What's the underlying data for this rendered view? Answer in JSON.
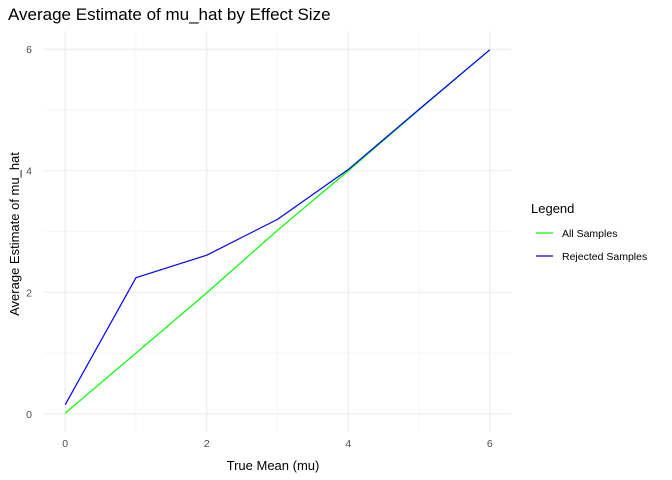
{
  "chart_data": {
    "type": "line",
    "title": "Average Estimate of mu_hat by Effect Size",
    "xlabel": "True Mean (mu)",
    "ylabel": "Average Estimate of mu_hat",
    "xlim": [
      -0.3,
      6.3
    ],
    "ylim": [
      -0.3,
      6.3
    ],
    "x_ticks": [
      0,
      2,
      4,
      6
    ],
    "y_ticks": [
      0,
      2,
      4,
      6
    ],
    "grid": true,
    "legend_title": "Legend",
    "legend_position": "right",
    "series": [
      {
        "name": "All Samples",
        "color": "#00ff00",
        "x": [
          0,
          1,
          2,
          3,
          4,
          5,
          6
        ],
        "values": [
          0.01,
          1.0,
          1.99,
          3.02,
          4.0,
          5.0,
          5.99
        ]
      },
      {
        "name": "Rejected Samples",
        "color": "#0000ff",
        "x": [
          0,
          1,
          2,
          3,
          4,
          5,
          6
        ],
        "values": [
          0.15,
          2.24,
          2.61,
          3.2,
          4.02,
          5.01,
          5.99
        ]
      }
    ]
  }
}
